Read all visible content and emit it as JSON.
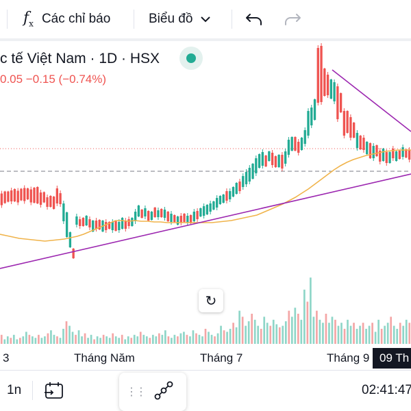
{
  "toolbar": {
    "indicators_label": "Các chỉ báo",
    "fx_icon": "fx-icon",
    "chart_label": "Biểu đồ",
    "undo_icon": "undo-icon",
    "redo_icon": "redo-icon"
  },
  "symbol": {
    "title": "c tế Việt Nam · 1D · HSX",
    "change_text": "0.05  −0.15 (−0.74%)",
    "status_color": "#22ab94"
  },
  "colors": {
    "up": "#22ab94",
    "down": "#ef5350",
    "ma": "#f0b34a",
    "trendline": "#9c27b0"
  },
  "xaxis": {
    "labels": [
      "3",
      "Tháng Năm",
      "Tháng 7",
      "Tháng 9"
    ],
    "crosshair_date": "09 Th"
  },
  "bottom": {
    "interval": "1n",
    "calendar_icon": "goto-date-icon",
    "time": "02:41:47"
  },
  "chart_data": {
    "type": "candlestick",
    "series": [
      {
        "name": "price",
        "values": [
          [
            231,
            17,
            0,
            1
          ],
          [
            228,
            17,
            0,
            0
          ],
          [
            227,
            15,
            0,
            0
          ],
          [
            226,
            16,
            0,
            1
          ],
          [
            225,
            18,
            0,
            0
          ],
          [
            227,
            17,
            0,
            1
          ],
          [
            224,
            17,
            0,
            0
          ],
          [
            224,
            19,
            0,
            1
          ],
          [
            223,
            16,
            0,
            0
          ],
          [
            226,
            19,
            0,
            1
          ],
          [
            225,
            22,
            0,
            0
          ],
          [
            225,
            24,
            0,
            0
          ],
          [
            230,
            18,
            0,
            1
          ],
          [
            228,
            15,
            0,
            0
          ],
          [
            235,
            14,
            0,
            1
          ],
          [
            234,
            16,
            0,
            0
          ],
          [
            236,
            18,
            0,
            0
          ],
          [
            226,
            22,
            0,
            1
          ],
          [
            230,
            16,
            0,
            1
          ],
          [
            250,
            26,
            1,
            1
          ],
          [
            268,
            36,
            1,
            0
          ],
          [
            290,
            22,
            1,
            0
          ],
          [
            310,
            14,
            0,
            0
          ],
          [
            262,
            12,
            1,
            1
          ],
          [
            265,
            10,
            0,
            1
          ],
          [
            264,
            12,
            0,
            0
          ],
          [
            262,
            14,
            1,
            0
          ],
          [
            266,
            12,
            0,
            1
          ],
          [
            270,
            16,
            1,
            0
          ],
          [
            268,
            12,
            0,
            1
          ],
          [
            268,
            14,
            0,
            0
          ],
          [
            270,
            16,
            1,
            0
          ],
          [
            270,
            12,
            0,
            1
          ],
          [
            269,
            10,
            0,
            0
          ],
          [
            270,
            12,
            1,
            1
          ],
          [
            270,
            14,
            0,
            0
          ],
          [
            270,
            12,
            1,
            1
          ],
          [
            266,
            16,
            1,
            0
          ],
          [
            268,
            12,
            0,
            1
          ],
          [
            265,
            10,
            0,
            1
          ],
          [
            264,
            12,
            1,
            0
          ],
          [
            256,
            14,
            1,
            1
          ],
          [
            248,
            16,
            1,
            0
          ],
          [
            252,
            12,
            0,
            0
          ],
          [
            250,
            12,
            1,
            1
          ],
          [
            255,
            14,
            0,
            0
          ],
          [
            255,
            12,
            1,
            0
          ],
          [
            250,
            14,
            0,
            0
          ],
          [
            252,
            10,
            1,
            1
          ],
          [
            251,
            12,
            0,
            0
          ],
          [
            252,
            12,
            1,
            1
          ],
          [
            256,
            14,
            0,
            0
          ],
          [
            258,
            12,
            1,
            1
          ],
          [
            259,
            10,
            0,
            0
          ],
          [
            262,
            12,
            1,
            0
          ],
          [
            260,
            10,
            0,
            1
          ],
          [
            258,
            12,
            0,
            0
          ],
          [
            260,
            10,
            1,
            1
          ],
          [
            260,
            12,
            0,
            0
          ],
          [
            256,
            14,
            1,
            1
          ],
          [
            254,
            12,
            0,
            1
          ],
          [
            250,
            12,
            1,
            0
          ],
          [
            248,
            14,
            1,
            1
          ],
          [
            246,
            14,
            1,
            0
          ],
          [
            243,
            12,
            1,
            1
          ],
          [
            240,
            12,
            1,
            0
          ],
          [
            236,
            14,
            1,
            1
          ],
          [
            232,
            12,
            1,
            0
          ],
          [
            230,
            12,
            1,
            0
          ],
          [
            226,
            14,
            0,
            1
          ],
          [
            225,
            12,
            1,
            1
          ],
          [
            220,
            14,
            1,
            0
          ],
          [
            215,
            16,
            1,
            0
          ],
          [
            212,
            14,
            0,
            1
          ],
          [
            205,
            16,
            1,
            1
          ],
          [
            200,
            18,
            1,
            1
          ],
          [
            195,
            20,
            1,
            1
          ],
          [
            190,
            22,
            1,
            0
          ],
          [
            182,
            22,
            1,
            1
          ],
          [
            175,
            20,
            1,
            0
          ],
          [
            172,
            20,
            1,
            1
          ],
          [
            175,
            16,
            0,
            0
          ],
          [
            168,
            14,
            1,
            0
          ],
          [
            172,
            18,
            0,
            1
          ],
          [
            176,
            16,
            0,
            0
          ],
          [
            175,
            18,
            1,
            0
          ],
          [
            176,
            20,
            0,
            1
          ],
          [
            170,
            18,
            1,
            1
          ],
          [
            155,
            22,
            1,
            1
          ],
          [
            150,
            20,
            1,
            0
          ],
          [
            150,
            20,
            0,
            0
          ],
          [
            155,
            16,
            0,
            1
          ],
          [
            150,
            18,
            1,
            0
          ],
          [
            140,
            20,
            1,
            1
          ],
          [
            120,
            36,
            1,
            1
          ],
          [
            110,
            26,
            1,
            1
          ],
          [
            100,
            30,
            1,
            0
          ],
          [
            50,
            80,
            0,
            1
          ],
          [
            48,
            82,
            0,
            1
          ],
          [
            60,
            40,
            0,
            0
          ],
          [
            64,
            30,
            0,
            1
          ],
          [
            70,
            28,
            1,
            0
          ],
          [
            74,
            28,
            1,
            1
          ],
          [
            90,
            48,
            0,
            1
          ],
          [
            90,
            28,
            0,
            0
          ],
          [
            120,
            36,
            0,
            1
          ],
          [
            118,
            32,
            0,
            0
          ],
          [
            126,
            30,
            0,
            1
          ],
          [
            130,
            22,
            0,
            0
          ],
          [
            145,
            22,
            1,
            1
          ],
          [
            148,
            20,
            0,
            0
          ],
          [
            150,
            18,
            0,
            1
          ],
          [
            156,
            18,
            1,
            0
          ],
          [
            160,
            22,
            0,
            0
          ],
          [
            162,
            18,
            1,
            1
          ],
          [
            160,
            16,
            0,
            0
          ],
          [
            168,
            16,
            0,
            1
          ],
          [
            166,
            18,
            1,
            0
          ],
          [
            170,
            16,
            0,
            1
          ],
          [
            170,
            16,
            1,
            0
          ],
          [
            164,
            14,
            0,
            1
          ],
          [
            168,
            14,
            1,
            0
          ],
          [
            166,
            12,
            0,
            0
          ],
          [
            162,
            14,
            1,
            1
          ],
          [
            164,
            12,
            0,
            0
          ],
          [
            166,
            14,
            0,
            1
          ]
        ]
      }
    ],
    "ma": [
      282,
      284,
      286,
      288,
      289,
      290,
      291,
      292,
      291,
      290,
      289,
      287,
      285,
      282,
      278,
      274,
      270,
      266,
      262,
      262,
      263,
      262,
      263,
      263,
      264,
      264,
      265,
      265,
      265,
      265,
      265,
      265,
      265,
      265,
      264,
      263,
      262,
      260,
      258,
      256,
      254,
      250,
      246,
      242,
      238,
      233,
      228,
      222,
      216,
      209,
      202,
      195,
      188,
      182,
      177,
      173,
      170,
      167,
      165,
      163,
      161,
      160,
      159,
      159,
      159
    ],
    "volume": [
      6,
      3,
      5,
      4,
      6,
      3,
      4,
      5,
      8,
      6,
      5,
      4,
      6,
      4,
      5,
      7,
      9,
      6,
      5,
      4,
      10,
      15,
      12,
      8,
      6,
      9,
      5,
      7,
      4,
      6,
      3,
      5,
      4,
      6,
      5,
      4,
      7,
      5,
      4,
      6,
      3,
      5,
      4,
      6,
      5,
      8,
      6,
      5,
      4,
      6,
      5,
      7,
      6,
      9,
      5,
      4,
      6,
      5,
      7,
      8,
      6,
      5,
      9,
      7,
      6,
      5,
      10,
      8,
      6,
      5,
      7,
      12,
      9,
      8,
      10,
      14,
      11,
      22,
      18,
      12,
      15,
      20,
      16,
      12,
      10,
      18,
      14,
      12,
      16,
      13,
      11,
      12,
      15,
      22,
      18,
      24,
      20,
      16,
      36,
      28,
      44,
      18,
      22,
      16,
      14,
      20,
      14,
      18,
      16,
      12,
      14,
      10,
      16,
      12,
      14,
      10,
      12,
      14,
      10,
      12,
      14,
      8,
      16,
      10,
      12,
      14,
      18,
      12,
      10,
      14,
      12,
      16,
      14
    ]
  }
}
